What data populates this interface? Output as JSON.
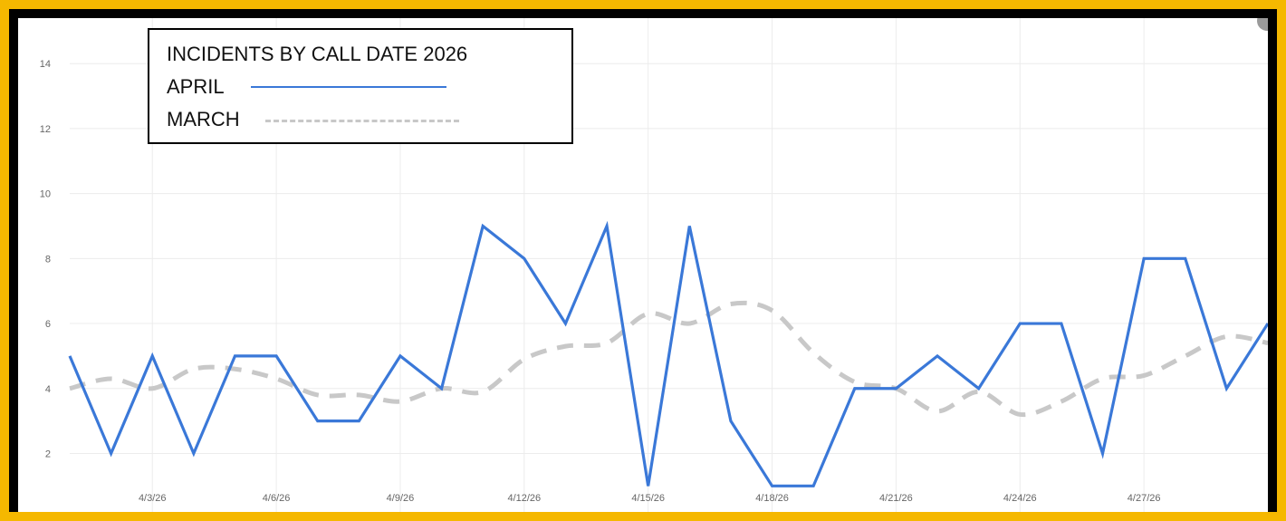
{
  "colors": {
    "frame": "#f5b800",
    "april_line": "#3a78d8",
    "march_line": "#c8c8c8",
    "grid": "#ececec"
  },
  "chart_data": {
    "type": "line",
    "title": "INCIDENTS BY CALL DATE 2026",
    "xlabel": "",
    "ylabel": "",
    "x": [
      "4/1/26",
      "4/2/26",
      "4/3/26",
      "4/4/26",
      "4/5/26",
      "4/6/26",
      "4/7/26",
      "4/8/26",
      "4/9/26",
      "4/10/26",
      "4/11/26",
      "4/12/26",
      "4/13/26",
      "4/14/26",
      "4/15/26",
      "4/16/26",
      "4/17/26",
      "4/18/26",
      "4/19/26",
      "4/20/26",
      "4/21/26",
      "4/22/26",
      "4/23/26",
      "4/24/26",
      "4/25/26",
      "4/26/26",
      "4/27/26",
      "4/28/26",
      "4/29/26",
      "4/30/26"
    ],
    "x_tick_labels": [
      "4/3/26",
      "4/6/26",
      "4/9/26",
      "4/12/26",
      "4/15/26",
      "4/18/26",
      "4/21/26",
      "4/24/26",
      "4/27/26"
    ],
    "y_tick_labels": [
      "2",
      "4",
      "6",
      "8",
      "10",
      "12",
      "14"
    ],
    "ylim": [
      0.2,
      15.4
    ],
    "grid": true,
    "legend_placement": "top-left",
    "series": [
      {
        "name": "APRIL",
        "style": "solid",
        "values": [
          5,
          2,
          5,
          2,
          5,
          5,
          3,
          3,
          5,
          4,
          9,
          8,
          6,
          9,
          1,
          9,
          3,
          1,
          1,
          4,
          4,
          5,
          4,
          6,
          6,
          2,
          8,
          8,
          4,
          6
        ]
      },
      {
        "name": "MARCH",
        "style": "dashed",
        "values": [
          4,
          4.3,
          4,
          4.6,
          4.6,
          4.3,
          3.8,
          3.8,
          3.6,
          4,
          3.9,
          4.9,
          5.3,
          5.4,
          6.3,
          6,
          6.6,
          6.4,
          5.1,
          4.2,
          4,
          3.3,
          3.9,
          3.2,
          3.6,
          4.3,
          4.4,
          5,
          5.6,
          5.4
        ]
      }
    ]
  }
}
